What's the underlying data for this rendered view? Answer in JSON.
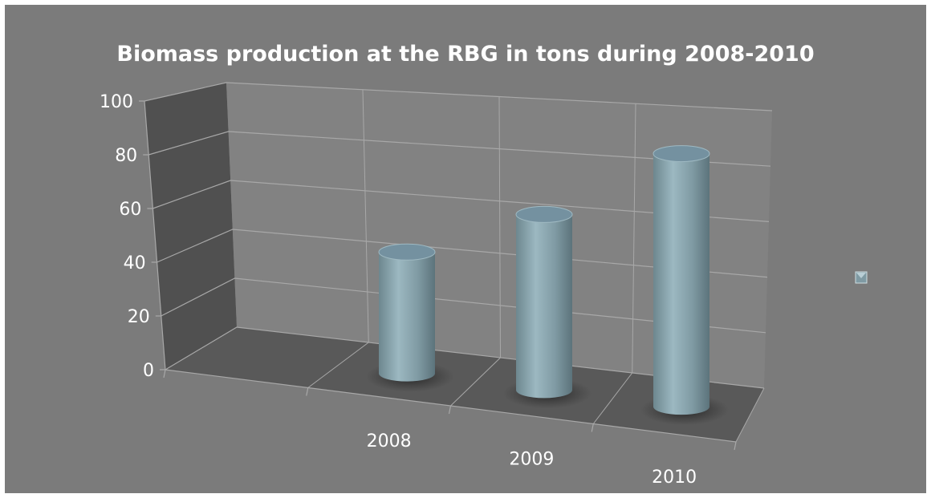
{
  "chart_data": {
    "type": "bar",
    "style": "3d-cylinder",
    "title": "Biomass production at the RBG in tons during 2008-2010",
    "categories": [
      "2008",
      "2009",
      "2010"
    ],
    "values": [
      47,
      68,
      98
    ],
    "yticks": [
      "0",
      "20",
      "40",
      "60",
      "80",
      "100"
    ],
    "ylim": [
      0,
      100
    ],
    "grid": true,
    "legend_position": "right",
    "colors": {
      "background": "#7b7b7b",
      "bar": "#7f9aa3",
      "back_wall": "#828282",
      "side_wall": "#505050",
      "floor": "#595959",
      "grid": "#a8a8a8",
      "text": "#ffffff"
    }
  }
}
